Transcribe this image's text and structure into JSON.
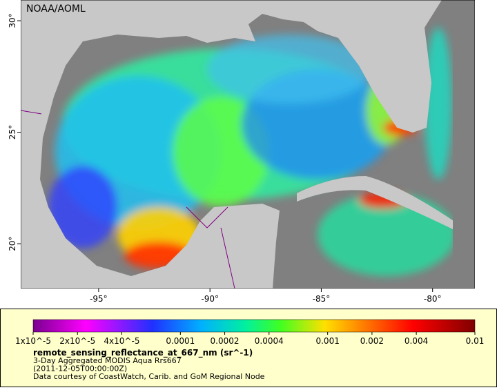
{
  "title": "NOAA/AOML",
  "map": {
    "xlim": [
      -98.5,
      -78.1
    ],
    "ylim": [
      17.99,
      30.93
    ],
    "xticks": [
      {
        "value": -95,
        "label": "-95°"
      },
      {
        "value": -90,
        "label": "-90°"
      },
      {
        "value": -85,
        "label": "-85°"
      },
      {
        "value": -80,
        "label": "-80°"
      }
    ],
    "yticks": [
      {
        "value": 20,
        "label": "20°"
      },
      {
        "value": 25,
        "label": "25°"
      },
      {
        "value": 30,
        "label": "30°"
      }
    ]
  },
  "colorbar": {
    "scale": "log",
    "lim": [
      1e-05,
      0.01
    ],
    "ticks": [
      {
        "value": 1e-05,
        "label": "1x10^-5"
      },
      {
        "value": 2e-05,
        "label": "2x10^-5"
      },
      {
        "value": 4e-05,
        "label": "4x10^-5"
      },
      0.0001,
      0.0002,
      0.0004,
      0.001,
      0.002,
      0.004,
      0.01
    ],
    "variable": "remote_sensing_reflectance_at_667_nm (sr^-1)"
  },
  "legend": {
    "lines": [
      "3-Day Aggregated MODIS Aqua Rrs667",
      "(2011-12-05T00:00:00Z)",
      "Data courtesy of CoastWatch, Carib. and GoM Regional Node"
    ]
  }
}
